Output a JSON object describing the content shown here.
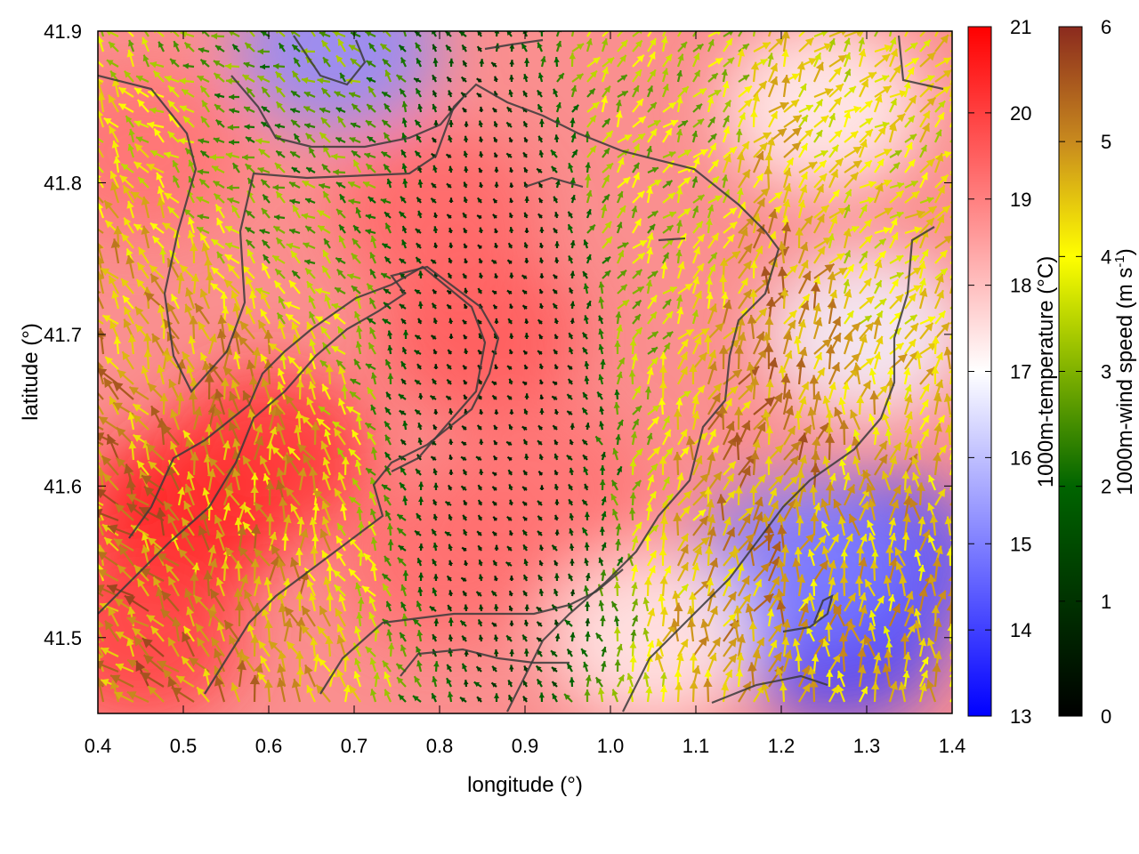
{
  "chart_data": {
    "type": "heatmap",
    "title": "",
    "xlabel": "longitude (°)",
    "ylabel": "latitude (°)",
    "xlim": [
      0.4,
      1.4
    ],
    "ylim": [
      1.45,
      1.9
    ],
    "x_ticks": [
      "0.4",
      "0.5",
      "0.6",
      "0.7",
      "0.8",
      "0.9",
      "1.0",
      "1.1",
      "1.2",
      "1.3",
      "1.4"
    ],
    "x_tick_values": [
      0.4,
      0.5,
      0.6,
      0.7,
      0.8,
      0.9,
      1.0,
      1.1,
      1.2,
      1.3,
      1.4
    ],
    "y_ticks": [
      "41.5",
      "41.6",
      "41.7",
      "41.8",
      "41.9"
    ],
    "y_tick_values": [
      41.5,
      41.6,
      41.7,
      41.8,
      41.9
    ],
    "y_range": [
      41.45,
      41.9
    ],
    "temperature_colorbar": {
      "label": "1000m-temperature (°C)",
      "range": [
        13,
        21
      ],
      "tick_labels": [
        "13",
        "14",
        "15",
        "16",
        "17",
        "18",
        "19",
        "20",
        "21"
      ],
      "tick_values": [
        13,
        14,
        15,
        16,
        17,
        18,
        19,
        20,
        21
      ],
      "colors": [
        "#0000ff",
        "#ffffff",
        "#ff0000"
      ]
    },
    "wind_colorbar": {
      "label_prefix": "1000m-wind speed (m s",
      "label_sup": "-1",
      "label_suffix": ")",
      "range": [
        0,
        6
      ],
      "tick_labels": [
        "0",
        "1",
        "2",
        "3",
        "4",
        "5",
        "6"
      ],
      "tick_values": [
        0,
        1,
        2,
        3,
        4,
        5,
        6
      ],
      "colors": [
        "#000000",
        "#006400",
        "#ffff00",
        "#c88a1e",
        "#8b2a1e"
      ]
    },
    "temperature_regions": [
      {
        "lon": 0.5,
        "lat": 41.58,
        "value": 20.6
      },
      {
        "lon": 0.45,
        "lat": 41.5,
        "value": 20.0
      },
      {
        "lon": 0.6,
        "lat": 41.62,
        "value": 20.2
      },
      {
        "lon": 0.85,
        "lat": 41.7,
        "value": 19.6
      },
      {
        "lon": 0.8,
        "lat": 41.78,
        "value": 19.4
      },
      {
        "lon": 0.92,
        "lat": 41.6,
        "value": 19.2
      },
      {
        "lon": 0.8,
        "lat": 41.55,
        "value": 19.3
      },
      {
        "lon": 1.27,
        "lat": 41.5,
        "value": 14.0
      },
      {
        "lon": 1.32,
        "lat": 41.55,
        "value": 14.3
      },
      {
        "lon": 1.22,
        "lat": 41.55,
        "value": 15.0
      },
      {
        "lon": 0.68,
        "lat": 41.89,
        "value": 15.2
      },
      {
        "lon": 1.25,
        "lat": 41.85,
        "value": 17.2
      },
      {
        "lon": 1.3,
        "lat": 41.7,
        "value": 16.8
      },
      {
        "lon": 1.05,
        "lat": 41.5,
        "value": 17.3
      },
      {
        "lon": 0.45,
        "lat": 41.82,
        "value": 19.2
      }
    ],
    "wind_regions": [
      {
        "lon": 0.55,
        "lat": 41.6,
        "speed": 4.2,
        "direction_deg": 350
      },
      {
        "lon": 0.45,
        "lat": 41.5,
        "speed": 4.5,
        "direction_deg": 320
      },
      {
        "lon": 0.88,
        "lat": 41.7,
        "speed": 0.6,
        "direction_deg": 330
      },
      {
        "lon": 1.3,
        "lat": 41.55,
        "speed": 3.8,
        "direction_deg": 0
      },
      {
        "lon": 1.2,
        "lat": 41.65,
        "speed": 4.4,
        "direction_deg": 20
      },
      {
        "lon": 1.3,
        "lat": 41.8,
        "speed": 3.2,
        "direction_deg": 45
      },
      {
        "lon": 0.6,
        "lat": 41.85,
        "speed": 2.0,
        "direction_deg": 300
      },
      {
        "lon": 1.05,
        "lat": 41.85,
        "speed": 2.5,
        "direction_deg": 40
      }
    ]
  }
}
